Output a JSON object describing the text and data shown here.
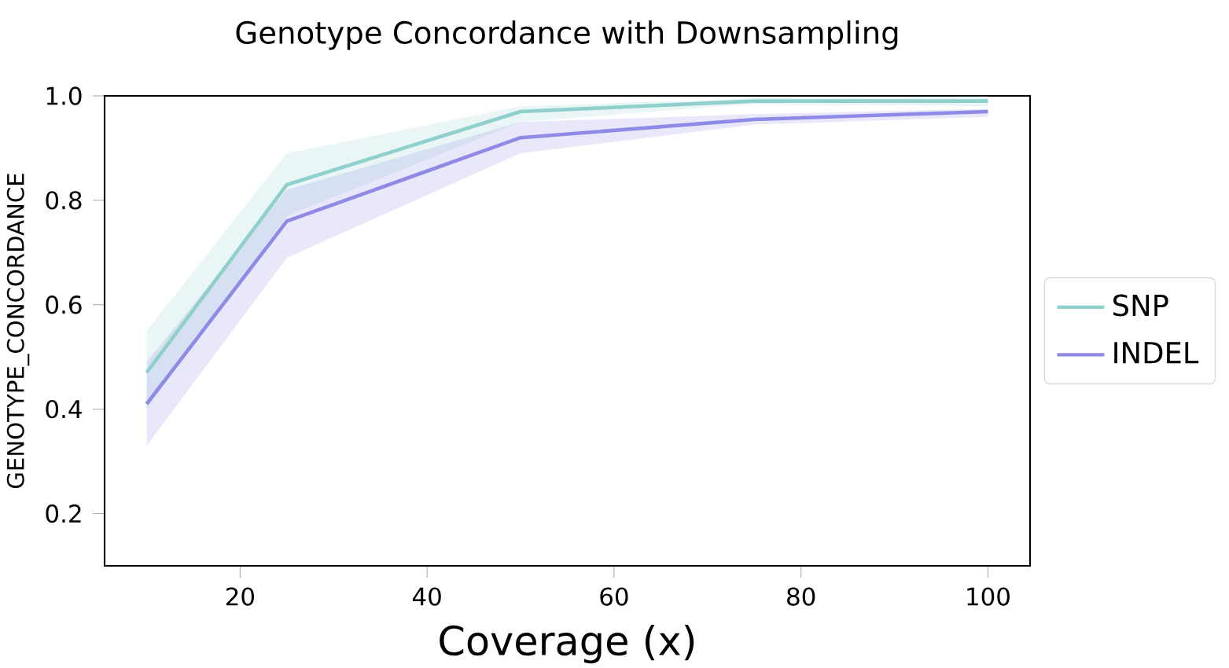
{
  "chart_data": {
    "type": "line",
    "title": "Genotype Concordance with Downsampling",
    "xlabel": "Coverage (x)",
    "ylabel": "GENOTYPE_CONCORDANCE",
    "xlim": [
      5.5,
      104.5
    ],
    "xticks": [
      20,
      40,
      60,
      80,
      100
    ],
    "ylim": [
      0.1,
      1.0
    ],
    "yticks": [
      0.2,
      0.4,
      0.6,
      0.8,
      {
        "value": 1.0,
        "label": "1.0"
      }
    ],
    "x": [
      10,
      25,
      50,
      75,
      100
    ],
    "series": [
      {
        "name": "SNP",
        "color": "#8fd0cc",
        "values": [
          0.47,
          0.83,
          0.97,
          0.99,
          0.99
        ],
        "lower": [
          0.4,
          0.77,
          0.95,
          0.985,
          0.98
        ],
        "upper": [
          0.55,
          0.89,
          0.98,
          0.995,
          1.0
        ]
      },
      {
        "name": "INDEL",
        "color": "#8e8ae6",
        "values": [
          0.41,
          0.76,
          0.92,
          0.955,
          0.97
        ],
        "lower": [
          0.33,
          0.69,
          0.89,
          0.945,
          0.96
        ],
        "upper": [
          0.49,
          0.82,
          0.95,
          0.965,
          0.975
        ]
      }
    ],
    "legend": "right",
    "grid": false,
    "marker": "none",
    "line_style": "solid"
  }
}
